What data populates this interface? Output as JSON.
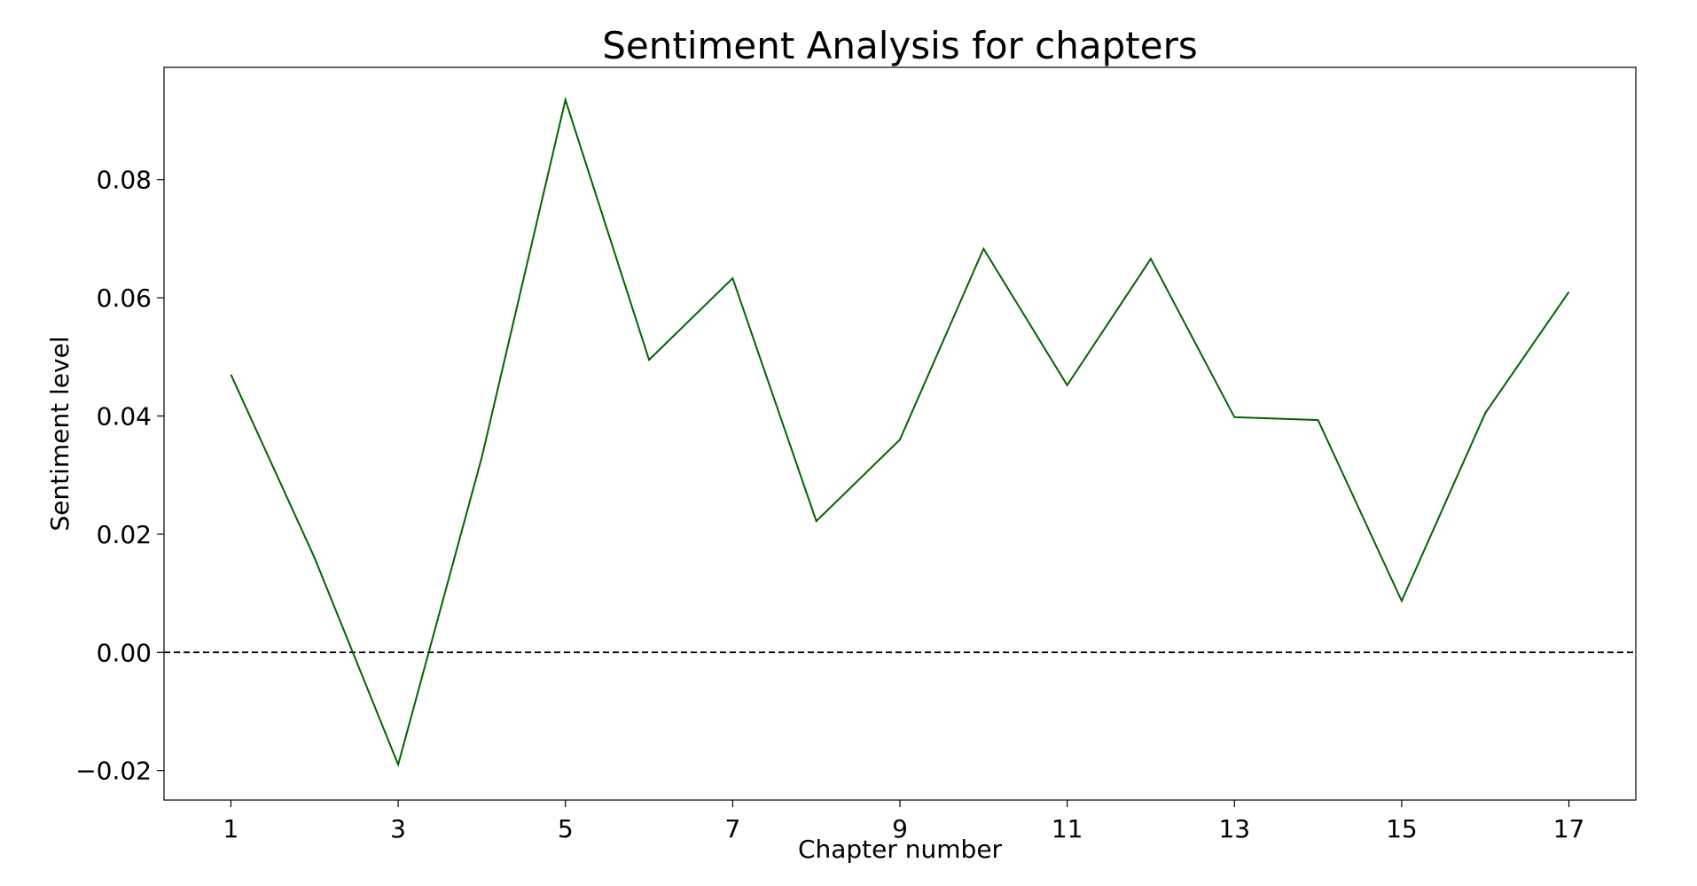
{
  "chart_data": {
    "type": "line",
    "title": "Sentiment Analysis for chapters",
    "xlabel": "Chapter number",
    "ylabel": "Sentiment level",
    "xlim": [
      0.2,
      17.8
    ],
    "ylim": [
      -0.025,
      0.099
    ],
    "xticks": [
      1,
      3,
      5,
      7,
      9,
      11,
      13,
      15,
      17
    ],
    "xtick_labels": [
      "1",
      "3",
      "5",
      "7",
      "9",
      "11",
      "13",
      "15",
      "17"
    ],
    "yticks": [
      -0.02,
      0.0,
      0.02,
      0.04,
      0.06,
      0.08
    ],
    "ytick_labels": [
      "−0.02",
      "0.00",
      "0.02",
      "0.04",
      "0.06",
      "0.08"
    ],
    "grid": false,
    "legend": false,
    "series": [
      {
        "color": "#006400",
        "x": [
          1,
          2,
          3,
          4,
          5,
          6,
          7,
          8,
          9,
          10,
          11,
          12,
          13,
          14,
          15,
          16,
          17
        ],
        "y": [
          0.047,
          0.016,
          -0.019,
          0.033,
          0.0935,
          0.0495,
          0.0633,
          0.0222,
          0.036,
          0.0683,
          0.0452,
          0.0666,
          0.0398,
          0.0393,
          0.0087,
          0.0405,
          0.061
        ]
      }
    ],
    "reference_line": {
      "y": 0.0,
      "style": "dashed",
      "color": "#000000"
    }
  }
}
